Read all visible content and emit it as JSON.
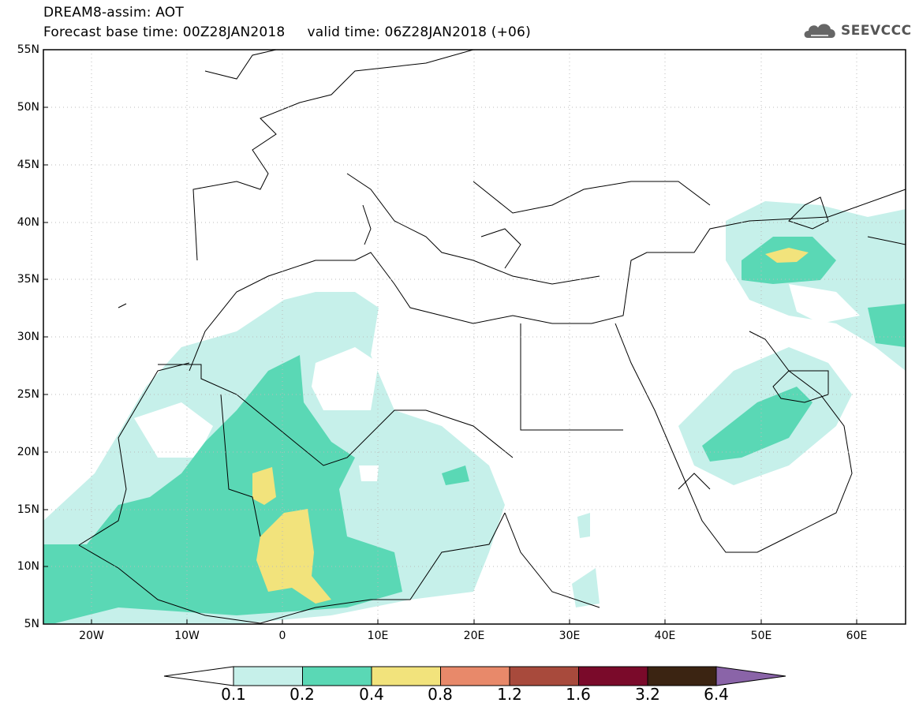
{
  "header": {
    "model_line": "DREAM8-assim: AOT",
    "time_line": "Forecast base time: 00Z28JAN2018     valid time: 06Z28JAN2018 (+06)"
  },
  "logo": {
    "name": "SEEVCCC",
    "icon": "cloud-icon"
  },
  "map": {
    "lon_range": [
      -25,
      65
    ],
    "lat_range": [
      5,
      55
    ],
    "lat_labels": [
      "55N",
      "50N",
      "45N",
      "40N",
      "35N",
      "30N",
      "25N",
      "20N",
      "15N",
      "10N",
      "5N"
    ],
    "lon_labels": [
      "20W",
      "10W",
      "0",
      "10E",
      "20E",
      "30E",
      "40E",
      "50E",
      "60E"
    ],
    "gridlines": "dotted"
  },
  "colorbar": {
    "labels": [
      "0.1",
      "0.2",
      "0.4",
      "0.8",
      "1.2",
      "1.6",
      "3.2",
      "6.4"
    ],
    "colors": {
      "below": "#ffffff",
      "c01_02": "#c6f0ea",
      "c02_04": "#5ad8b5",
      "c04_08": "#f2e37c",
      "c08_12": "#e8896a",
      "c12_16": "#a84a3c",
      "c16_32": "#7a0a2a",
      "c32_64": "#3b2412",
      "above": "#8a64a8"
    }
  }
}
